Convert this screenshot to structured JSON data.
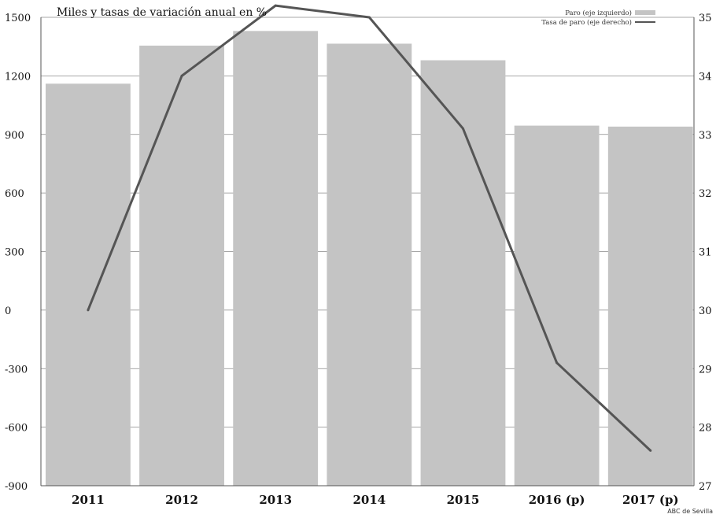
{
  "chart_data": {
    "type": "bar",
    "title": "Miles y tasas de variación anual en %",
    "categories": [
      "2011",
      "2012",
      "2013",
      "2014",
      "2015",
      "2016 (p)",
      "2017 (p)"
    ],
    "series": [
      {
        "name": "Paro (eje izquierdo)",
        "type": "bar",
        "axis": "left",
        "values": [
          1160,
          1355,
          1430,
          1365,
          1280,
          945,
          940
        ],
        "color": "#c4c4c4"
      },
      {
        "name": "Tasa de paro (eje derecho)",
        "type": "line",
        "axis": "right",
        "values": [
          30.0,
          34.0,
          35.2,
          35.0,
          33.1,
          29.1,
          27.6
        ],
        "color": "#555555"
      }
    ],
    "y_left": {
      "ylim": [
        -900,
        1500
      ],
      "ticks": [
        "1500",
        "1200",
        "900",
        "600",
        "300",
        "0",
        "-300",
        "-600",
        "-900"
      ]
    },
    "y_right": {
      "ylim": [
        27,
        35
      ],
      "ticks": [
        "35",
        "34",
        "33",
        "32",
        "31",
        "30",
        "29",
        "28",
        "27"
      ]
    },
    "grid": true,
    "legend_position": "top-right"
  },
  "credit": "ABC de Sevilla"
}
